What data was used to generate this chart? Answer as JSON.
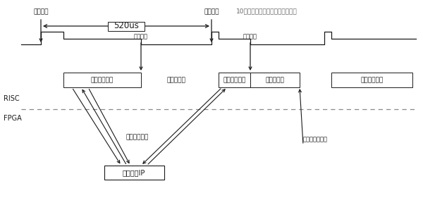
{
  "bg_color": "#ffffff",
  "title": "10个中断服务程序对应一次主循环",
  "label_interrupt_arrive": "中断到来",
  "label_interrupt_end": "中断结束",
  "label_520us": "520us",
  "label_isr": "中断服务程序",
  "label_main": "主处理函数",
  "label_risc": "RISC",
  "label_fpga": "FPGA",
  "label_bus": "大量总线操作",
  "label_nav_ip": "导航硬件IP",
  "label_one_loop_end": "一次主循环结束"
}
